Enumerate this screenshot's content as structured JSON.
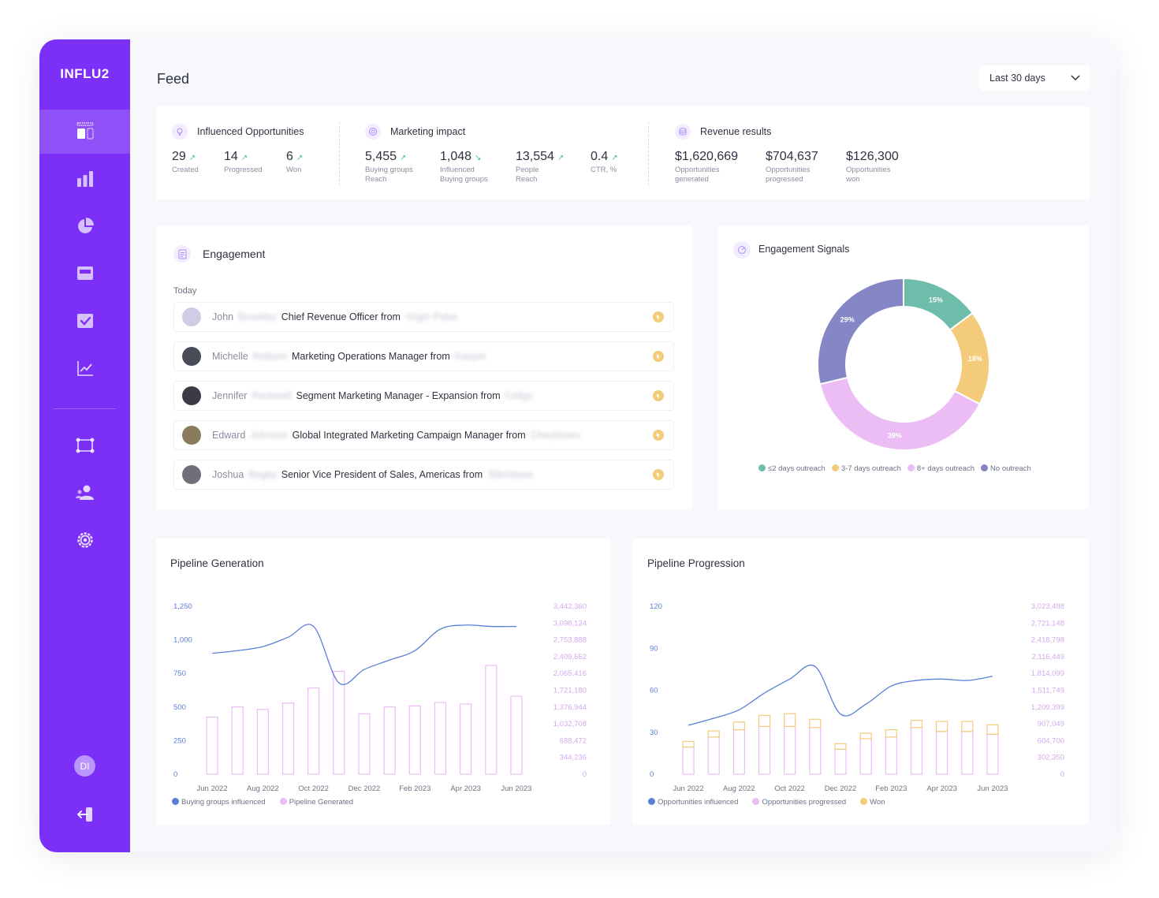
{
  "app": {
    "logo": "INFLU2",
    "user_initials": "DI"
  },
  "header": {
    "title": "Feed",
    "range": "Last 30 days"
  },
  "colors": {
    "brand": "#7b2ff7",
    "teal": "#6dbdaa",
    "amber": "#f3cb7a",
    "pink": "#ecbdf5",
    "indigo": "#8486c6",
    "line": "#5b7fd6"
  },
  "sidebar": {
    "items": [
      "dashboard-icon",
      "bar-chart-icon",
      "pie-chart-icon",
      "screen-icon",
      "checkbox-icon",
      "line-chart-icon",
      "workflow-icon",
      "users-icon",
      "settings-icon",
      "logout-icon"
    ]
  },
  "kpis": {
    "influenced": {
      "title": "Influenced Opportunities",
      "items": [
        {
          "value": "29",
          "label1": "Created",
          "label2": ""
        },
        {
          "value": "14",
          "label1": "Progressed",
          "label2": ""
        },
        {
          "value": "6",
          "label1": "Won",
          "label2": ""
        }
      ]
    },
    "marketing": {
      "title": "Marketing impact",
      "items": [
        {
          "value": "5,455",
          "label1": "Buying groups",
          "label2": "Reach"
        },
        {
          "value": "1,048",
          "label1": "Influenced",
          "label2": "Buying groups"
        },
        {
          "value": "13,554",
          "label1": "People",
          "label2": "Reach"
        },
        {
          "value": "0.4",
          "label1": "CTR, %",
          "label2": ""
        }
      ]
    },
    "revenue": {
      "title": "Revenue results",
      "items": [
        {
          "value": "$1,620,669",
          "label1": "Opportunities",
          "label2": "generated"
        },
        {
          "value": "$704,637",
          "label1": "Opportunities",
          "label2": "progressed"
        },
        {
          "value": "$126,300",
          "label1": "Opportunities",
          "label2": "won"
        }
      ]
    }
  },
  "engagement": {
    "title": "Engagement",
    "day": "Today",
    "rows": [
      {
        "first": "John",
        "last": "Brookley",
        "title": "Chief Revenue Officer from",
        "company": "Virgin Pulse"
      },
      {
        "first": "Michelle",
        "last": "Robson",
        "title": "Marketing Operations Manager from",
        "company": "Keeper"
      },
      {
        "first": "Jennifer",
        "last": "Rockwell",
        "title": "Segment Marketing Manager - Expansion from",
        "company": "Cellgo"
      },
      {
        "first": "Edward",
        "last": "Johnson",
        "title": "Global Integrated Marketing Campaign Manager from",
        "company": "Checkmarx"
      },
      {
        "first": "Joshua",
        "last": "Bagby",
        "title": "Senior Vice President of Sales, Americas from",
        "company": "Stitchbase"
      }
    ]
  },
  "signals": {
    "title": "Engagement Signals",
    "chart_data": {
      "type": "pie",
      "categories": [
        "≤2 days outreach",
        "3-7 days outreach",
        "8+ days outreach",
        "No outreach"
      ],
      "values": [
        15,
        18,
        39,
        29
      ],
      "labels": [
        "15%",
        "18%",
        "39%",
        "29%"
      ],
      "colors": [
        "#6dbdaa",
        "#f3cb7a",
        "#ecbdf5",
        "#8486c6"
      ],
      "legend": "bottom"
    }
  },
  "pipeline_generation": {
    "title": "Pipeline Generation",
    "chart_data": {
      "type": "bar",
      "x": [
        "Jun 2022",
        "Jul 2022",
        "Aug 2022",
        "Sep 2022",
        "Oct 2022",
        "Nov 2022",
        "Dec 2022",
        "Jan 2023",
        "Feb 2023",
        "Mar 2023",
        "Apr 2023",
        "May 2023",
        "Jun 2023"
      ],
      "x_tick_labels": [
        "Jun 2022",
        "Aug 2022",
        "Oct 2022",
        "Dec 2022",
        "Feb 2023",
        "Apr 2023",
        "Jun 2023"
      ],
      "y_left_ticks": [
        "0",
        "250",
        "500",
        "750",
        "1,000",
        "1,250"
      ],
      "y_right_ticks": [
        "0",
        "344,236",
        "688,472",
        "1,032,708",
        "1,376,944",
        "1,721,180",
        "2,065,416",
        "2,409,652",
        "2,753,888",
        "3,098,124",
        "3,442,360"
      ],
      "ylim_left": [
        0,
        1250
      ],
      "ylim_right": [
        0,
        3442360
      ],
      "series": [
        {
          "name": "Buying groups influenced",
          "type": "line",
          "axis": "left",
          "color": "#5b7fd6",
          "values": [
            900,
            920,
            950,
            1020,
            1100,
            680,
            780,
            850,
            920,
            1080,
            1110,
            1100,
            1100
          ]
        },
        {
          "name": "Pipeline Generated",
          "type": "bar",
          "axis": "right",
          "color": "#ecbdf5",
          "values": [
            1170000,
            1380000,
            1330000,
            1460000,
            1770000,
            2110000,
            1240000,
            1380000,
            1400000,
            1470000,
            1440000,
            2230000,
            1600000
          ]
        }
      ]
    }
  },
  "pipeline_progression": {
    "title": "Pipeline Progression",
    "chart_data": {
      "type": "bar",
      "x": [
        "Jun 2022",
        "Jul 2022",
        "Aug 2022",
        "Sep 2022",
        "Oct 2022",
        "Nov 2022",
        "Dec 2022",
        "Jan 2023",
        "Feb 2023",
        "Mar 2023",
        "Apr 2023",
        "May 2023",
        "Jun 2023"
      ],
      "x_tick_labels": [
        "Jun 2022",
        "Aug 2022",
        "Oct 2022",
        "Dec 2022",
        "Feb 2023",
        "Apr 2023",
        "Jun 2023"
      ],
      "y_left_ticks": [
        "0",
        "30",
        "60",
        "90",
        "120"
      ],
      "y_right_ticks": [
        "0",
        "302,350",
        "604,700",
        "907,049",
        "1,209,399",
        "1,511,749",
        "1,814,099",
        "2,116,449",
        "2,418,798",
        "2,721,148",
        "3,023,498"
      ],
      "ylim_left": [
        0,
        120
      ],
      "ylim_right": [
        0,
        3023498
      ],
      "series": [
        {
          "name": "Opportunities influenced",
          "type": "line",
          "axis": "left",
          "color": "#5b7fd6",
          "values": [
            35,
            40,
            46,
            58,
            68,
            77,
            43,
            50,
            63,
            67,
            68,
            67,
            70
          ]
        },
        {
          "name": "Opportunities progressed",
          "type": "bar",
          "axis": "right",
          "color": "#ecbdf5",
          "values": [
            490000,
            670000,
            800000,
            860000,
            860000,
            840000,
            450000,
            640000,
            670000,
            840000,
            770000,
            770000,
            720000
          ]
        },
        {
          "name": "Won",
          "type": "bar",
          "axis": "right",
          "color": "#f3cb7a",
          "values": [
            100000,
            110000,
            140000,
            200000,
            230000,
            150000,
            100000,
            100000,
            130000,
            130000,
            180000,
            180000,
            170000
          ]
        }
      ]
    }
  }
}
